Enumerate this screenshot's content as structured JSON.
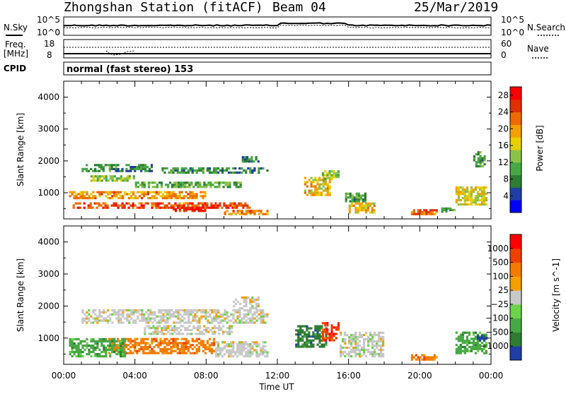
{
  "header": {
    "station": "Zhongshan Station (fitACF)",
    "beam": "Beam 04",
    "date": "25/Mar/2019"
  },
  "strip_labels": {
    "nsky": "N.Sky",
    "nsearch": "N.Search",
    "freq_line1": "Freq.",
    "freq_line2": "[MHz]",
    "nave": "Nave",
    "cpid": "CPID",
    "cpid_value": "normal (fast stereo) 153",
    "nsky_ticks": [
      "10^5",
      "10^0"
    ],
    "nsearch_ticks": [
      "10^5",
      "10^0"
    ],
    "freq_ticks": [
      "18",
      "8"
    ],
    "nave_ticks": [
      "60",
      "0"
    ]
  },
  "chart_data": [
    {
      "type": "heatmap",
      "panel": "power",
      "ylabel": "Slant Range [km]",
      "xlabel": "",
      "ylim": [
        180,
        4500
      ],
      "y_ticks": [
        1000,
        2000,
        3000,
        4000
      ],
      "x_ticks": [
        "00:00",
        "04:00",
        "08:00",
        "12:00",
        "16:00",
        "20:00",
        "00:00"
      ],
      "colorbar": {
        "label": "Power [dB]",
        "ticks": [
          4,
          8,
          12,
          16,
          20,
          24,
          28
        ],
        "range": [
          0,
          30
        ],
        "colors": [
          "#0000ff",
          "#1f3fa6",
          "#2e7d32",
          "#48a845",
          "#8bc34a",
          "#e8d000",
          "#f5a000",
          "#ee6a00",
          "#e03000",
          "#ff0000"
        ]
      },
      "blobs": [
        {
          "t": [
            1.0,
            5.0
          ],
          "r": [
            1650,
            1900
          ],
          "level": 0.25
        },
        {
          "t": [
            1.5,
            4.0
          ],
          "r": [
            1350,
            1550
          ],
          "level": 0.45
        },
        {
          "t": [
            5.5,
            11.5
          ],
          "r": [
            1600,
            1800
          ],
          "level": 0.25
        },
        {
          "t": [
            4.0,
            10.0
          ],
          "r": [
            1150,
            1350
          ],
          "level": 0.35
        },
        {
          "t": [
            0.3,
            8.0
          ],
          "r": [
            800,
            1050
          ],
          "level": 0.7
        },
        {
          "t": [
            0.5,
            10.5
          ],
          "r": [
            500,
            700
          ],
          "level": 0.85
        },
        {
          "t": [
            6.0,
            8.0
          ],
          "r": [
            400,
            550
          ],
          "level": 0.95
        },
        {
          "t": [
            9.0,
            11.5
          ],
          "r": [
            300,
            450
          ],
          "level": 0.75
        },
        {
          "t": [
            10.0,
            11.0
          ],
          "r": [
            1950,
            2150
          ],
          "level": 0.2
        },
        {
          "t": [
            13.5,
            15.0
          ],
          "r": [
            900,
            1500
          ],
          "level": 0.6
        },
        {
          "t": [
            14.5,
            15.5
          ],
          "r": [
            1400,
            1700
          ],
          "level": 0.45
        },
        {
          "t": [
            15.8,
            17.0
          ],
          "r": [
            700,
            1000
          ],
          "level": 0.3
        },
        {
          "t": [
            16.0,
            17.5
          ],
          "r": [
            350,
            700
          ],
          "level": 0.6
        },
        {
          "t": [
            19.5,
            21.0
          ],
          "r": [
            300,
            480
          ],
          "level": 0.8
        },
        {
          "t": [
            21.2,
            22.0
          ],
          "r": [
            380,
            520
          ],
          "level": 0.35
        },
        {
          "t": [
            22.0,
            23.8
          ],
          "r": [
            600,
            1200
          ],
          "level": 0.55
        },
        {
          "t": [
            23.0,
            23.7
          ],
          "r": [
            1800,
            2300
          ],
          "level": 0.3
        }
      ]
    },
    {
      "type": "heatmap",
      "panel": "velocity",
      "ylabel": "Slant Range [km]",
      "xlabel": "Time UT",
      "ylim": [
        180,
        4500
      ],
      "y_ticks": [
        1000,
        2000,
        3000,
        4000
      ],
      "x_ticks": [
        "00:00",
        "04:00",
        "08:00",
        "12:00",
        "16:00",
        "20:00",
        "00:00"
      ],
      "colorbar": {
        "label": "Velocity [m s^-1]",
        "ticks": [
          "1000",
          "500",
          "100",
          "25",
          "−25",
          "−100",
          "−500",
          "−1000"
        ],
        "colors": [
          "#1f3fa6",
          "#2e7d32",
          "#48a845",
          "#6cd34a",
          "#c8c8c8",
          "#f5a000",
          "#f57b00",
          "#ee4000",
          "#ff0000"
        ]
      },
      "blobs": [
        {
          "t": [
            1.0,
            11.5
          ],
          "r": [
            1450,
            1900
          ],
          "cls": 4
        },
        {
          "t": [
            4.5,
            9.5
          ],
          "r": [
            1100,
            1400
          ],
          "cls": 4
        },
        {
          "t": [
            2.5,
            8.5
          ],
          "r": [
            500,
            1000
          ],
          "cls": 6
        },
        {
          "t": [
            0.3,
            3.5
          ],
          "r": [
            400,
            1000
          ],
          "cls": 2
        },
        {
          "t": [
            8.5,
            11.5
          ],
          "r": [
            400,
            900
          ],
          "cls": 4
        },
        {
          "t": [
            9.5,
            11.0
          ],
          "r": [
            1900,
            2300
          ],
          "cls": 4
        },
        {
          "t": [
            13.0,
            14.8
          ],
          "r": [
            700,
            1400
          ],
          "cls": 1
        },
        {
          "t": [
            14.5,
            15.5
          ],
          "r": [
            900,
            1500
          ],
          "cls": 7
        },
        {
          "t": [
            15.5,
            18.0
          ],
          "r": [
            400,
            1200
          ],
          "cls": 4
        },
        {
          "t": [
            19.5,
            21.0
          ],
          "r": [
            300,
            500
          ],
          "cls": 6
        },
        {
          "t": [
            22.0,
            23.8
          ],
          "r": [
            500,
            1200
          ],
          "cls": 2
        },
        {
          "t": [
            23.2,
            23.8
          ],
          "r": [
            900,
            1100
          ],
          "cls": 0
        }
      ]
    }
  ]
}
